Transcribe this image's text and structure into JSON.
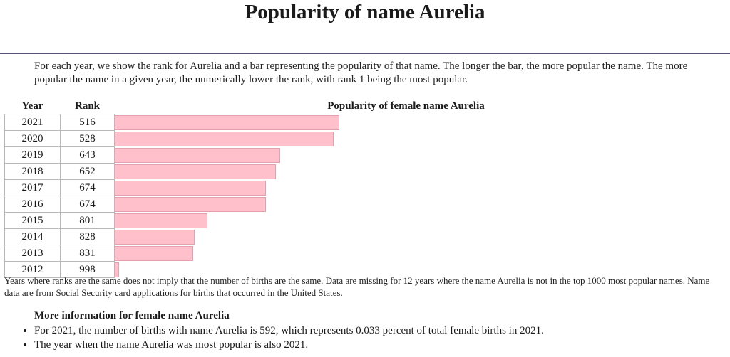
{
  "page": {
    "title": "Popularity of name Aurelia",
    "intro": "For each year, we show the rank for Aurelia and a bar representing the popularity of that name. The longer the bar, the more popular the name. The more popular the name in a given year, the numerically lower the rank, with rank 1 being the most popular."
  },
  "table": {
    "year_header": "Year",
    "rank_header": "Rank",
    "bar_header": "Popularity of female name Aurelia"
  },
  "chart_data": {
    "type": "bar",
    "orientation": "horizontal",
    "title": "Popularity of female name Aurelia",
    "categories": [
      "2021",
      "2020",
      "2019",
      "2018",
      "2017",
      "2016",
      "2015",
      "2014",
      "2013",
      "2012"
    ],
    "values": [
      516,
      528,
      643,
      652,
      674,
      674,
      801,
      828,
      831,
      998
    ],
    "bar_color": "#ffc0cb"
  },
  "footnote": "Years where ranks are the same does not imply that the number of births are the same. Data are missing for 12 years where the name Aurelia is not in the top 1000 most popular names. Name data are from Social Security card applications for births that occurred in the United States.",
  "more_info": {
    "heading": "More information for female name Aurelia",
    "items": [
      "For 2021, the number of births with name Aurelia is 592, which represents 0.033 percent of total female births in 2021.",
      "The year when the name Aurelia was most popular is also 2021."
    ]
  }
}
